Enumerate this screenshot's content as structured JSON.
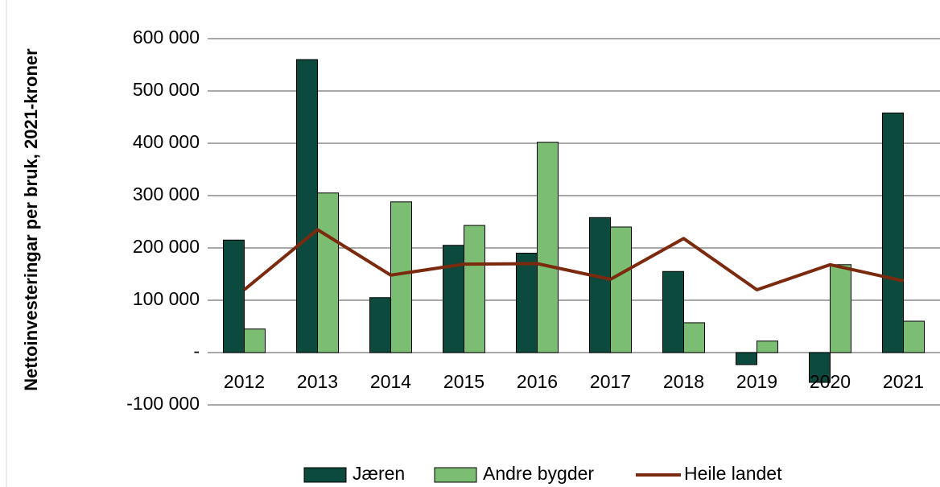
{
  "chart_data": {
    "type": "bar",
    "ylabel": "Nettoinvesteringar per bruk, 2021-kroner",
    "categories": [
      "2012",
      "2013",
      "2014",
      "2015",
      "2016",
      "2017",
      "2018",
      "2019",
      "2020",
      "2021"
    ],
    "series": [
      {
        "name": "Jæren",
        "type": "bar",
        "color": "#0d4a3e",
        "values": [
          215000,
          560000,
          105000,
          205000,
          190000,
          258000,
          155000,
          -23000,
          -57000,
          458000
        ]
      },
      {
        "name": "Andre bygder",
        "type": "bar",
        "color": "#7bbd72",
        "values": [
          45000,
          305000,
          288000,
          243000,
          402000,
          240000,
          57000,
          22000,
          168000,
          60000
        ]
      },
      {
        "name": "Heile landet",
        "type": "line",
        "color": "#7b2a0e",
        "values": [
          120000,
          235000,
          148000,
          169000,
          170000,
          140000,
          218000,
          120000,
          168000,
          137000
        ]
      }
    ],
    "ylim": [
      -100000,
      600000
    ],
    "yticks": [
      {
        "value": -100000,
        "label": "-100 000"
      },
      {
        "value": 0,
        "label": "-"
      },
      {
        "value": 100000,
        "label": "100 000"
      },
      {
        "value": 200000,
        "label": "200 000"
      },
      {
        "value": 300000,
        "label": "300 000"
      },
      {
        "value": 400000,
        "label": "400 000"
      },
      {
        "value": 500000,
        "label": "500 000"
      },
      {
        "value": 600000,
        "label": "600 000"
      }
    ],
    "grid": true
  }
}
